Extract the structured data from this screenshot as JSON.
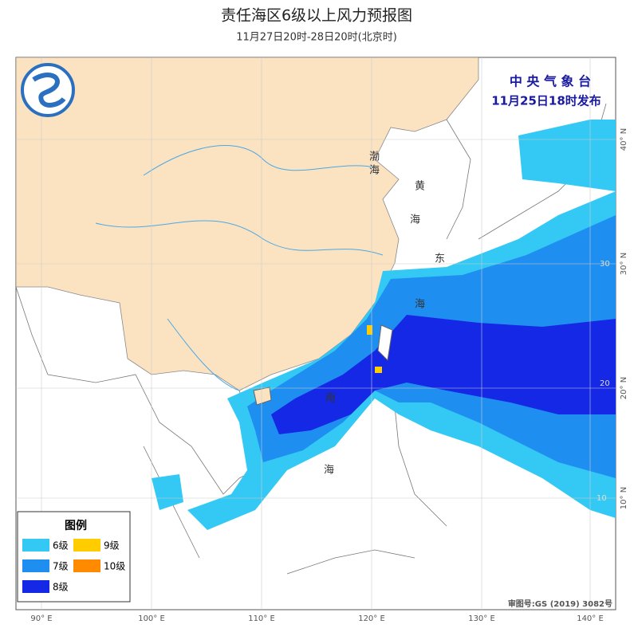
{
  "header": {
    "title": "责任海区6级以上风力预报图",
    "subtitle": "11月27日20时-28日20时(北京时)"
  },
  "agency": {
    "name": "中 央 气 象 台",
    "issued": "11月25日18时发布"
  },
  "legend": {
    "title": "图例",
    "items": [
      {
        "label": "6级",
        "color": "#33c9f4"
      },
      {
        "label": "9级",
        "color": "#ffcc00"
      },
      {
        "label": "7级",
        "color": "#1f8ef1"
      },
      {
        "label": "10级",
        "color": "#ff8a00"
      },
      {
        "label": "8级",
        "color": "#1428e6"
      }
    ]
  },
  "axes": {
    "longitude": [
      "90° E",
      "100° E",
      "110° E",
      "120° E",
      "130° E",
      "140° E"
    ],
    "latitude": [
      "40° N",
      "30° N",
      "20° N",
      "10° N"
    ],
    "inner_latitude": [
      "30",
      "20",
      "10"
    ]
  },
  "sea_labels": {
    "yellow": [
      "黄",
      "海"
    ],
    "east": [
      "东",
      "海"
    ],
    "south": [
      "南",
      "海"
    ],
    "bohai": [
      "渤",
      "海"
    ]
  },
  "footer": {
    "approval": "审图号:GS (2019) 3082号"
  }
}
